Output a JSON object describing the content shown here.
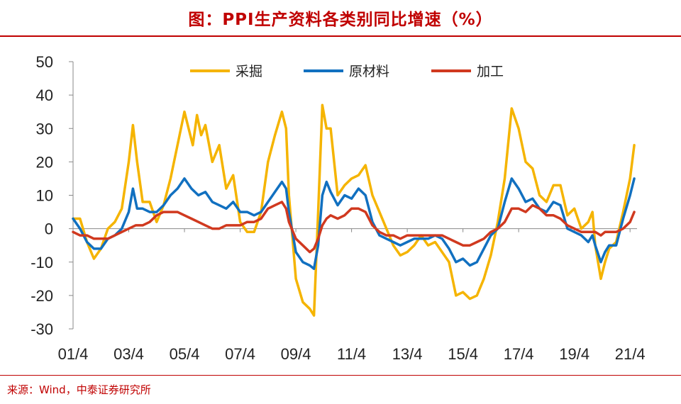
{
  "header": {
    "title": "图：PPI生产资料各类别同比增速（%）"
  },
  "footer": {
    "source": "来源：Wind，中泰证券研究所"
  },
  "chart_data": {
    "type": "line",
    "title": "图：PPI生产资料各类别同比增速（%）",
    "xlabel": "",
    "ylabel": "",
    "ylim": [
      -30,
      50
    ],
    "yticks": [
      -30,
      -20,
      -10,
      0,
      10,
      20,
      30,
      40,
      50
    ],
    "xlim": [
      2001.25,
      2021.5
    ],
    "xticks": [
      {
        "label": "01/4",
        "x": 2001.25
      },
      {
        "label": "03/4",
        "x": 2003.25
      },
      {
        "label": "05/4",
        "x": 2005.25
      },
      {
        "label": "07/4",
        "x": 2007.25
      },
      {
        "label": "09/4",
        "x": 2009.25
      },
      {
        "label": "11/4",
        "x": 2011.25
      },
      {
        "label": "13/4",
        "x": 2013.25
      },
      {
        "label": "15/4",
        "x": 2015.25
      },
      {
        "label": "17/4",
        "x": 2017.25
      },
      {
        "label": "19/4",
        "x": 2019.25
      },
      {
        "label": "21/4",
        "x": 2021.25
      }
    ],
    "grid": false,
    "legend": "top-center",
    "series": [
      {
        "name": "采掘",
        "color": "#f5b400",
        "points": [
          [
            2001.25,
            3
          ],
          [
            2001.5,
            3
          ],
          [
            2001.75,
            -4
          ],
          [
            2002.0,
            -9
          ],
          [
            2002.25,
            -6
          ],
          [
            2002.5,
            0
          ],
          [
            2002.75,
            2
          ],
          [
            2003.0,
            6
          ],
          [
            2003.25,
            20
          ],
          [
            2003.4,
            31
          ],
          [
            2003.55,
            20
          ],
          [
            2003.75,
            8
          ],
          [
            2004.0,
            8
          ],
          [
            2004.25,
            2
          ],
          [
            2004.5,
            7
          ],
          [
            2004.75,
            15
          ],
          [
            2005.0,
            25
          ],
          [
            2005.25,
            35
          ],
          [
            2005.4,
            30
          ],
          [
            2005.55,
            25
          ],
          [
            2005.7,
            34
          ],
          [
            2005.85,
            28
          ],
          [
            2006.0,
            31
          ],
          [
            2006.25,
            20
          ],
          [
            2006.5,
            25
          ],
          [
            2006.75,
            12
          ],
          [
            2007.0,
            16
          ],
          [
            2007.25,
            2
          ],
          [
            2007.5,
            -1
          ],
          [
            2007.75,
            -1
          ],
          [
            2008.0,
            5
          ],
          [
            2008.25,
            20
          ],
          [
            2008.5,
            28
          ],
          [
            2008.75,
            35
          ],
          [
            2008.9,
            30
          ],
          [
            2009.0,
            10
          ],
          [
            2009.25,
            -15
          ],
          [
            2009.5,
            -22
          ],
          [
            2009.75,
            -24
          ],
          [
            2009.9,
            -26
          ],
          [
            2010.05,
            5
          ],
          [
            2010.2,
            37
          ],
          [
            2010.35,
            30
          ],
          [
            2010.5,
            30
          ],
          [
            2010.75,
            10
          ],
          [
            2011.0,
            13
          ],
          [
            2011.25,
            15
          ],
          [
            2011.5,
            16
          ],
          [
            2011.75,
            19
          ],
          [
            2012.0,
            10
          ],
          [
            2012.25,
            5
          ],
          [
            2012.5,
            0
          ],
          [
            2012.75,
            -5
          ],
          [
            2013.0,
            -8
          ],
          [
            2013.25,
            -7
          ],
          [
            2013.5,
            -5
          ],
          [
            2013.75,
            -2
          ],
          [
            2014.0,
            -5
          ],
          [
            2014.25,
            -4
          ],
          [
            2014.5,
            -7
          ],
          [
            2014.75,
            -10
          ],
          [
            2015.0,
            -20
          ],
          [
            2015.25,
            -19
          ],
          [
            2015.5,
            -21
          ],
          [
            2015.75,
            -20
          ],
          [
            2016.0,
            -15
          ],
          [
            2016.25,
            -8
          ],
          [
            2016.5,
            2
          ],
          [
            2016.75,
            15
          ],
          [
            2017.0,
            36
          ],
          [
            2017.25,
            30
          ],
          [
            2017.5,
            20
          ],
          [
            2017.75,
            18
          ],
          [
            2018.0,
            10
          ],
          [
            2018.25,
            8
          ],
          [
            2018.5,
            13
          ],
          [
            2018.75,
            13
          ],
          [
            2019.0,
            4
          ],
          [
            2019.25,
            6
          ],
          [
            2019.5,
            0
          ],
          [
            2019.75,
            2
          ],
          [
            2019.9,
            5
          ],
          [
            2020.0,
            -5
          ],
          [
            2020.2,
            -15
          ],
          [
            2020.35,
            -10
          ],
          [
            2020.5,
            -6
          ],
          [
            2020.75,
            -4
          ],
          [
            2021.0,
            5
          ],
          [
            2021.25,
            15
          ],
          [
            2021.4,
            25
          ]
        ]
      },
      {
        "name": "原材料",
        "color": "#1170c0",
        "points": [
          [
            2001.25,
            3
          ],
          [
            2001.5,
            0
          ],
          [
            2001.75,
            -4
          ],
          [
            2002.0,
            -6
          ],
          [
            2002.25,
            -6
          ],
          [
            2002.5,
            -3
          ],
          [
            2002.75,
            -2
          ],
          [
            2003.0,
            0
          ],
          [
            2003.25,
            5
          ],
          [
            2003.4,
            12
          ],
          [
            2003.55,
            6
          ],
          [
            2003.75,
            6
          ],
          [
            2004.0,
            5
          ],
          [
            2004.25,
            5
          ],
          [
            2004.5,
            7
          ],
          [
            2004.75,
            10
          ],
          [
            2005.0,
            12
          ],
          [
            2005.25,
            15
          ],
          [
            2005.5,
            12
          ],
          [
            2005.75,
            10
          ],
          [
            2006.0,
            11
          ],
          [
            2006.25,
            8
          ],
          [
            2006.5,
            7
          ],
          [
            2006.75,
            6
          ],
          [
            2007.0,
            8
          ],
          [
            2007.25,
            5
          ],
          [
            2007.5,
            5
          ],
          [
            2007.75,
            4
          ],
          [
            2008.0,
            5
          ],
          [
            2008.25,
            8
          ],
          [
            2008.5,
            11
          ],
          [
            2008.75,
            14
          ],
          [
            2008.9,
            12
          ],
          [
            2009.0,
            5
          ],
          [
            2009.25,
            -7
          ],
          [
            2009.5,
            -10
          ],
          [
            2009.75,
            -11
          ],
          [
            2009.9,
            -12
          ],
          [
            2010.05,
            -5
          ],
          [
            2010.2,
            10
          ],
          [
            2010.35,
            14
          ],
          [
            2010.5,
            11
          ],
          [
            2010.75,
            7
          ],
          [
            2011.0,
            10
          ],
          [
            2011.25,
            9
          ],
          [
            2011.5,
            12
          ],
          [
            2011.75,
            10
          ],
          [
            2012.0,
            2
          ],
          [
            2012.25,
            -2
          ],
          [
            2012.5,
            -3
          ],
          [
            2012.75,
            -4
          ],
          [
            2013.0,
            -5
          ],
          [
            2013.25,
            -4
          ],
          [
            2013.5,
            -3
          ],
          [
            2013.75,
            -3
          ],
          [
            2014.0,
            -3
          ],
          [
            2014.25,
            -2
          ],
          [
            2014.5,
            -3
          ],
          [
            2014.75,
            -6
          ],
          [
            2015.0,
            -10
          ],
          [
            2015.25,
            -9
          ],
          [
            2015.5,
            -11
          ],
          [
            2015.75,
            -10
          ],
          [
            2016.0,
            -6
          ],
          [
            2016.25,
            -2
          ],
          [
            2016.5,
            0
          ],
          [
            2016.75,
            8
          ],
          [
            2017.0,
            15
          ],
          [
            2017.25,
            12
          ],
          [
            2017.5,
            8
          ],
          [
            2017.75,
            9
          ],
          [
            2018.0,
            6
          ],
          [
            2018.25,
            5
          ],
          [
            2018.5,
            8
          ],
          [
            2018.75,
            7
          ],
          [
            2019.0,
            0
          ],
          [
            2019.25,
            -1
          ],
          [
            2019.5,
            -2
          ],
          [
            2019.75,
            -4
          ],
          [
            2019.9,
            -2
          ],
          [
            2020.0,
            -5
          ],
          [
            2020.2,
            -10
          ],
          [
            2020.35,
            -7
          ],
          [
            2020.5,
            -5
          ],
          [
            2020.75,
            -5
          ],
          [
            2021.0,
            3
          ],
          [
            2021.25,
            10
          ],
          [
            2021.4,
            15
          ]
        ]
      },
      {
        "name": "加工",
        "color": "#d0391f",
        "points": [
          [
            2001.25,
            -1
          ],
          [
            2001.5,
            -2
          ],
          [
            2001.75,
            -2
          ],
          [
            2002.0,
            -3
          ],
          [
            2002.25,
            -3
          ],
          [
            2002.5,
            -3
          ],
          [
            2002.75,
            -2
          ],
          [
            2003.0,
            -1
          ],
          [
            2003.25,
            0
          ],
          [
            2003.5,
            1
          ],
          [
            2003.75,
            1
          ],
          [
            2004.0,
            2
          ],
          [
            2004.25,
            4
          ],
          [
            2004.5,
            5
          ],
          [
            2004.75,
            5
          ],
          [
            2005.0,
            5
          ],
          [
            2005.25,
            4
          ],
          [
            2005.5,
            3
          ],
          [
            2005.75,
            2
          ],
          [
            2006.0,
            1
          ],
          [
            2006.25,
            0
          ],
          [
            2006.5,
            0
          ],
          [
            2006.75,
            1
          ],
          [
            2007.0,
            1
          ],
          [
            2007.25,
            1
          ],
          [
            2007.5,
            2
          ],
          [
            2007.75,
            2
          ],
          [
            2008.0,
            3
          ],
          [
            2008.25,
            6
          ],
          [
            2008.5,
            7
          ],
          [
            2008.75,
            8
          ],
          [
            2008.9,
            6
          ],
          [
            2009.0,
            2
          ],
          [
            2009.25,
            -3
          ],
          [
            2009.5,
            -5
          ],
          [
            2009.75,
            -7
          ],
          [
            2009.9,
            -6
          ],
          [
            2010.05,
            -3
          ],
          [
            2010.2,
            1
          ],
          [
            2010.35,
            3
          ],
          [
            2010.5,
            4
          ],
          [
            2010.75,
            3
          ],
          [
            2011.0,
            4
          ],
          [
            2011.25,
            6
          ],
          [
            2011.5,
            6
          ],
          [
            2011.75,
            5
          ],
          [
            2012.0,
            1
          ],
          [
            2012.25,
            -1
          ],
          [
            2012.5,
            -2
          ],
          [
            2012.75,
            -2
          ],
          [
            2013.0,
            -3
          ],
          [
            2013.25,
            -2
          ],
          [
            2013.5,
            -2
          ],
          [
            2013.75,
            -2
          ],
          [
            2014.0,
            -2
          ],
          [
            2014.25,
            -2
          ],
          [
            2014.5,
            -2
          ],
          [
            2014.75,
            -3
          ],
          [
            2015.0,
            -4
          ],
          [
            2015.25,
            -5
          ],
          [
            2015.5,
            -5
          ],
          [
            2015.75,
            -4
          ],
          [
            2016.0,
            -3
          ],
          [
            2016.25,
            -1
          ],
          [
            2016.5,
            0
          ],
          [
            2016.75,
            2
          ],
          [
            2017.0,
            6
          ],
          [
            2017.25,
            6
          ],
          [
            2017.5,
            5
          ],
          [
            2017.75,
            7
          ],
          [
            2018.0,
            6
          ],
          [
            2018.25,
            4
          ],
          [
            2018.5,
            4
          ],
          [
            2018.75,
            3
          ],
          [
            2019.0,
            1
          ],
          [
            2019.25,
            0
          ],
          [
            2019.5,
            -1
          ],
          [
            2019.75,
            -1
          ],
          [
            2019.9,
            -1
          ],
          [
            2020.0,
            -1
          ],
          [
            2020.2,
            -2
          ],
          [
            2020.35,
            -1
          ],
          [
            2020.5,
            -1
          ],
          [
            2020.75,
            -1
          ],
          [
            2021.0,
            0
          ],
          [
            2021.25,
            2
          ],
          [
            2021.4,
            5
          ]
        ]
      }
    ]
  }
}
